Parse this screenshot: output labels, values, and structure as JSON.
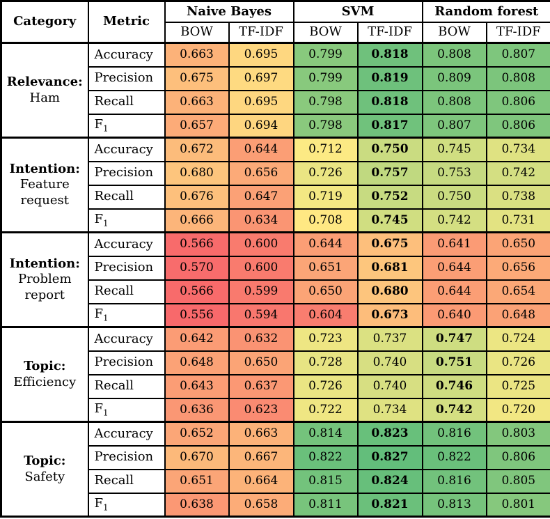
{
  "table": {
    "corner_headers": {
      "category": "Category",
      "metric": "Metric"
    },
    "model_groups": [
      {
        "name": "Naive Bayes",
        "subcols": [
          "BOW",
          "TF-IDF"
        ]
      },
      {
        "name": "SVM",
        "subcols": [
          "BOW",
          "TF-IDF"
        ]
      },
      {
        "name": "Random forest",
        "subcols": [
          "BOW",
          "TF-IDF"
        ]
      }
    ],
    "metrics": [
      {
        "label": "Accuracy",
        "sub": ""
      },
      {
        "label": "Precision",
        "sub": ""
      },
      {
        "label": "Recall",
        "sub": ""
      },
      {
        "label": "F",
        "sub": "1"
      }
    ],
    "groups": [
      {
        "category_bold": "Relevance:",
        "category_rest": "Ham",
        "best_col": 3,
        "rows": [
          [
            "0.663",
            "0.695",
            "0.799",
            "0.818",
            "0.808",
            "0.807"
          ],
          [
            "0.675",
            "0.697",
            "0.799",
            "0.819",
            "0.809",
            "0.808"
          ],
          [
            "0.663",
            "0.695",
            "0.798",
            "0.818",
            "0.808",
            "0.806"
          ],
          [
            "0.657",
            "0.694",
            "0.798",
            "0.817",
            "0.807",
            "0.806"
          ]
        ]
      },
      {
        "category_bold": "Intention:",
        "category_rest": "Feature request",
        "best_col": 3,
        "rows": [
          [
            "0.672",
            "0.644",
            "0.712",
            "0.750",
            "0.745",
            "0.734"
          ],
          [
            "0.680",
            "0.656",
            "0.726",
            "0.757",
            "0.753",
            "0.742"
          ],
          [
            "0.676",
            "0.647",
            "0.719",
            "0.752",
            "0.750",
            "0.738"
          ],
          [
            "0.666",
            "0.634",
            "0.708",
            "0.745",
            "0.742",
            "0.731"
          ]
        ]
      },
      {
        "category_bold": "Intention:",
        "category_rest": "Problem report",
        "best_col": 3,
        "rows": [
          [
            "0.566",
            "0.600",
            "0.644",
            "0.675",
            "0.641",
            "0.650"
          ],
          [
            "0.570",
            "0.600",
            "0.651",
            "0.681",
            "0.644",
            "0.656"
          ],
          [
            "0.566",
            "0.599",
            "0.650",
            "0.680",
            "0.644",
            "0.654"
          ],
          [
            "0.556",
            "0.594",
            "0.604",
            "0.673",
            "0.640",
            "0.648"
          ]
        ]
      },
      {
        "category_bold": "Topic:",
        "category_rest": "Efficiency",
        "best_col": 4,
        "rows": [
          [
            "0.642",
            "0.632",
            "0.723",
            "0.737",
            "0.747",
            "0.724"
          ],
          [
            "0.648",
            "0.650",
            "0.728",
            "0.740",
            "0.751",
            "0.726"
          ],
          [
            "0.643",
            "0.637",
            "0.726",
            "0.740",
            "0.746",
            "0.725"
          ],
          [
            "0.636",
            "0.623",
            "0.722",
            "0.734",
            "0.742",
            "0.720"
          ]
        ]
      },
      {
        "category_bold": "Topic:",
        "category_rest": "Safety",
        "best_col": 3,
        "rows": [
          [
            "0.652",
            "0.663",
            "0.814",
            "0.823",
            "0.816",
            "0.803"
          ],
          [
            "0.670",
            "0.667",
            "0.822",
            "0.827",
            "0.822",
            "0.806"
          ],
          [
            "0.651",
            "0.664",
            "0.815",
            "0.824",
            "0.816",
            "0.805"
          ],
          [
            "0.638",
            "0.658",
            "0.811",
            "0.821",
            "0.813",
            "0.801"
          ]
        ]
      }
    ],
    "heatmap": {
      "min": 0.556,
      "mid": 0.71,
      "max": 0.827,
      "min_color": "#F8696B",
      "mid_color": "#FFEB84",
      "max_color": "#63BE7B",
      "low_gamma": 1.6
    }
  }
}
